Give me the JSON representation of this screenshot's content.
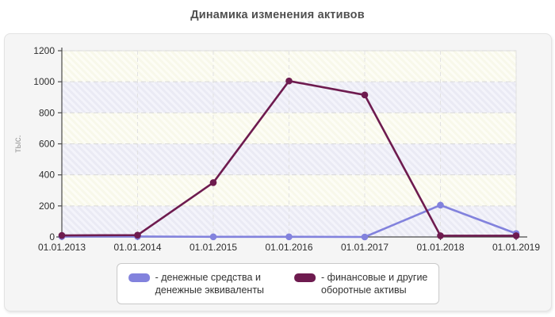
{
  "title": "Динамика изменения активов",
  "chart_data": {
    "type": "line",
    "title": "Динамика изменения активов",
    "xlabel": "",
    "ylabel": "тыс.",
    "ylim": [
      0,
      1200
    ],
    "ytick_step": 200,
    "yticks": [
      0,
      200,
      400,
      600,
      800,
      1000,
      1200
    ],
    "grid": "dashed horizontal and vertical gridlines",
    "legend_position": "bottom",
    "plot_band_colors": {
      "cream_base": "#f8f8ea",
      "cream_stripe": "#fdfdf6",
      "lavender_base": "#eaeaf4",
      "lavender_stripe": "#f4f4fb"
    },
    "categories": [
      "01.01.2013",
      "01.01.2014",
      "01.01.2015",
      "01.01.2016",
      "01.01.2017",
      "01.01.2018",
      "01.01.2019"
    ],
    "series": [
      {
        "name": "денежные средства и денежные эквиваленты",
        "color": "#8282dd",
        "marker": "circle",
        "values": [
          3,
          3,
          1,
          1,
          0,
          205,
          22
        ]
      },
      {
        "name": "финансовые и другие оборотные активы",
        "color": "#6e1b4f",
        "marker": "circle",
        "values": [
          10,
          12,
          350,
          1005,
          915,
          8,
          8
        ]
      }
    ]
  },
  "legend": {
    "items": [
      {
        "line1": "- денежные средства и",
        "line2": "денежные эквиваленты",
        "color": "#8282dd"
      },
      {
        "line1": "- финансовые и другие",
        "line2": "оборотные активы",
        "color": "#6e1b4f"
      }
    ]
  },
  "colors": {
    "title_text": "#4f4f4f",
    "tick_text": "#2e2e2e",
    "ylabel_text": "#9a9a9a",
    "axis_line": "#4a4a4a",
    "gridline": "#d9d9d9",
    "card_background": "#f5f5f5",
    "legend_border": "#c9c9c9"
  }
}
